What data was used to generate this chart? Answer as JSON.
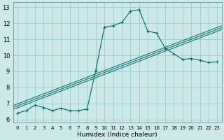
{
  "xlabel": "Humidex (Indice chaleur)",
  "xlim": [
    -0.5,
    23.5
  ],
  "ylim": [
    5.8,
    13.3
  ],
  "yticks": [
    6,
    7,
    8,
    9,
    10,
    11,
    12,
    13
  ],
  "xticks": [
    0,
    1,
    2,
    3,
    4,
    5,
    6,
    7,
    8,
    9,
    10,
    11,
    12,
    13,
    14,
    15,
    16,
    17,
    18,
    19,
    20,
    21,
    22,
    23
  ],
  "bg_color": "#cce8e8",
  "grid_color": "#99cccc",
  "line_color": "#006666",
  "humidex": [
    6.4,
    6.55,
    6.9,
    6.75,
    6.55,
    6.7,
    6.55,
    6.55,
    6.65,
    9.05,
    11.75,
    11.85,
    12.05,
    12.75,
    12.85,
    11.5,
    11.4,
    10.45,
    10.1,
    9.75,
    9.8,
    9.7,
    9.55,
    9.6
  ],
  "hours": [
    0,
    1,
    2,
    3,
    4,
    5,
    6,
    7,
    8,
    9,
    10,
    11,
    12,
    13,
    14,
    15,
    16,
    17,
    18,
    19,
    20,
    21,
    22,
    23
  ],
  "reg_offsets": [
    -0.12,
    0.0,
    0.12
  ],
  "reg_linewidth": 0.7,
  "main_linewidth": 0.8,
  "marker_size": 3.5,
  "tick_fontsize_x": 5.0,
  "tick_fontsize_y": 6.0,
  "xlabel_fontsize": 6.5
}
